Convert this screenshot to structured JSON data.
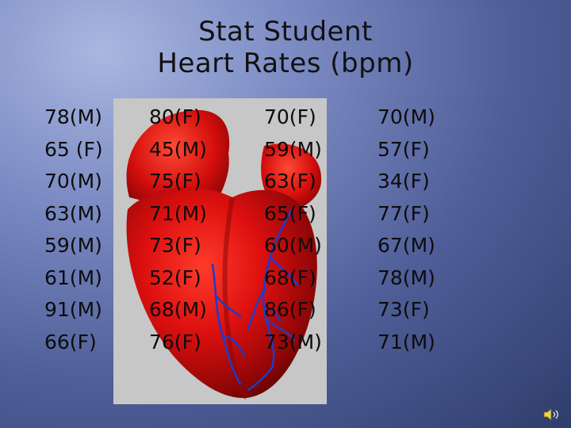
{
  "slide": {
    "title_line1": "Stat Student",
    "title_line2": "Heart Rates (bpm)",
    "columns": [
      [
        "78(M)",
        "65 (F)",
        "70(M)",
        "63(M)",
        "59(M)",
        "61(M)",
        "91(M)",
        "66(F)"
      ],
      [
        "80(F)",
        "45(M)",
        "75(F)",
        "71(M)",
        "73(F)",
        "52(F)",
        "68(M)",
        "76(F)"
      ],
      [
        "70(F)",
        "59(M)",
        "63(F)",
        "65(F)",
        "60(M)",
        "68(F)",
        "86(F)",
        "73(M)"
      ],
      [
        "70(M)",
        "57(F)",
        "34(F)",
        "77(F)",
        "67(M)",
        "78(M)",
        "73(F)",
        "71(M)"
      ]
    ]
  },
  "icons": {
    "heart_image": "heart-illustration",
    "speaker": "speaker-icon"
  },
  "colors": {
    "heart_red": "#d40c0c",
    "vessel_blue": "#1f3bc8",
    "panel_gray": "#c7c7c7"
  }
}
